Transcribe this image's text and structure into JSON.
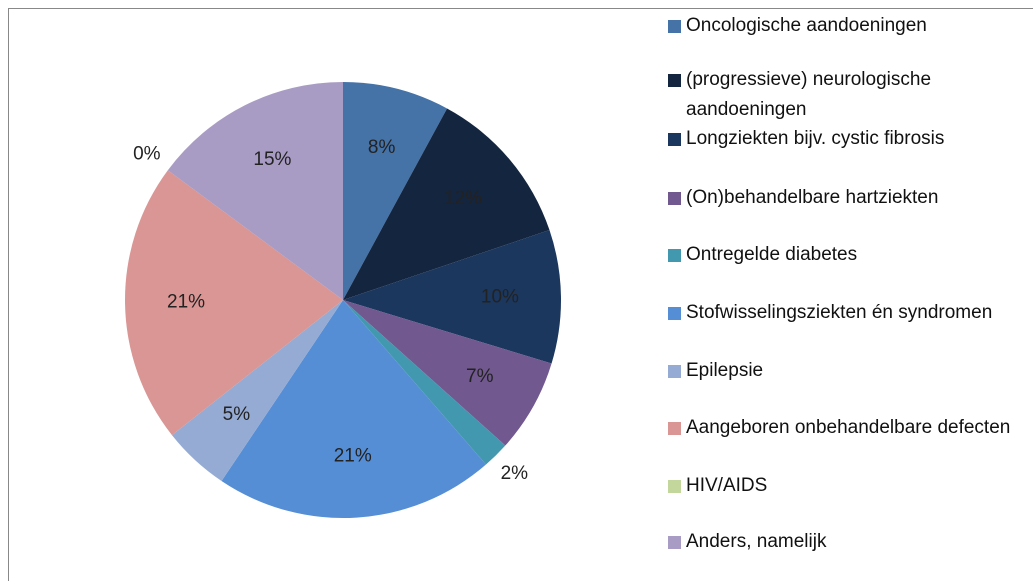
{
  "chart_data": {
    "type": "pie",
    "categories": [
      "Oncologische aandoeningen",
      "(progressieve) neurologische aandoeningen",
      "Longziekten bijv. cystic fibrosis",
      "(On)behandelbare hartziekten",
      "Ontregelde diabetes",
      "Stofwisselingsziekten én syndromen",
      "Epilepsie",
      "Aangeboren onbehandelbare defecten",
      "HIV/AIDS",
      "Anders, namelijk"
    ],
    "values": [
      8,
      12,
      10,
      7,
      2,
      21,
      5,
      21,
      0,
      15
    ],
    "value_labels": [
      "8%",
      "12%",
      "10%",
      "7%",
      "2%",
      "21%",
      "5%",
      "21%",
      "0%",
      "15%"
    ],
    "colors": [
      "#4572a7",
      "#14253f",
      "#1b375e",
      "#71588f",
      "#4198af",
      "#558ed5",
      "#95abd3",
      "#d99694",
      "#c3d69b",
      "#a99cc4"
    ],
    "legend": "right"
  }
}
